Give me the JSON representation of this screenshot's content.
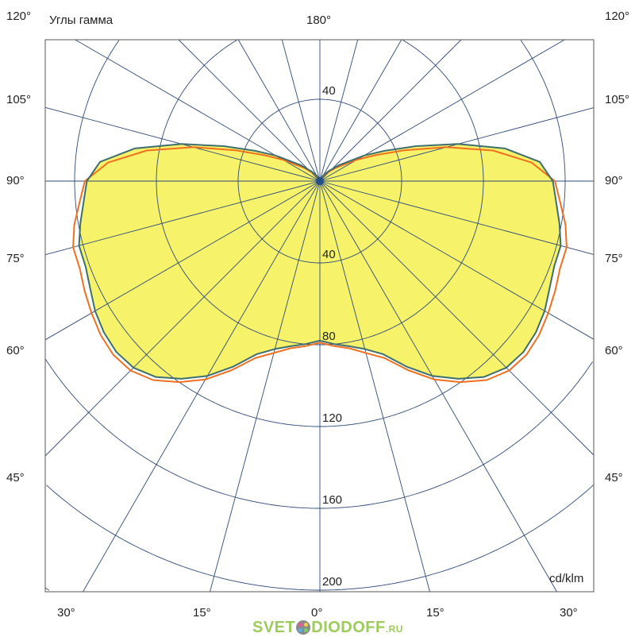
{
  "chart_data": {
    "type": "polar-line",
    "title": "Углы гамма",
    "unit_label": "cd/klm",
    "radial_ticks": [
      40,
      80,
      120,
      160,
      200
    ],
    "top_ring_label": "40",
    "radial_max": 200,
    "angle_labels_left": [
      "120°",
      "105°",
      "90°",
      "75°",
      "60°",
      "45°"
    ],
    "angle_labels_right": [
      "120°",
      "105°",
      "90°",
      "75°",
      "60°",
      "45°"
    ],
    "angle_labels_bottom": [
      "30°",
      "15°",
      "0°",
      "15°",
      "30°"
    ],
    "angle_label_top": "180°",
    "gamma": [
      0,
      5,
      10,
      15,
      20,
      25,
      30,
      35,
      40,
      45,
      50,
      55,
      60,
      65,
      70,
      75,
      80,
      85,
      90,
      95,
      100,
      105,
      110,
      115,
      120,
      130,
      140,
      150,
      160,
      170,
      180
    ],
    "series": [
      {
        "color": "#3f6e6e",
        "values": [
          78,
          80,
          82,
          85,
          90,
          100,
          110,
          118,
          125,
          129,
          130,
          129,
          127,
          124,
          122,
          122,
          119,
          116,
          114,
          108,
          92,
          70,
          50,
          35,
          25,
          12,
          6,
          3,
          1,
          0,
          0
        ]
      },
      {
        "color": "#f07020",
        "values": [
          79,
          81,
          83,
          87,
          92,
          102,
          112,
          120,
          127,
          131,
          132,
          131,
          129,
          127,
          125,
          125,
          122,
          118,
          115,
          104,
          86,
          64,
          44,
          30,
          21,
          10,
          5,
          2,
          1,
          0,
          0
        ]
      }
    ],
    "fill_color": "#f6f36b",
    "grid_color": "#2e4a7a",
    "grid": true
  },
  "watermark": {
    "text_main": "SVET",
    "text_mid": "DIODOFF",
    "text_tld": ".RU"
  }
}
